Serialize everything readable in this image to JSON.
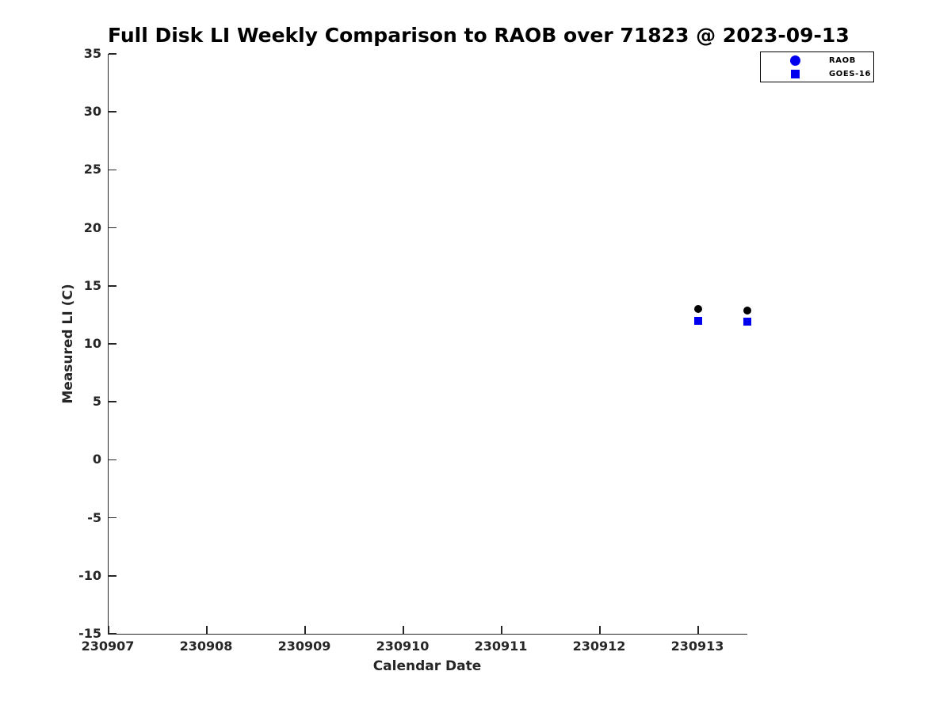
{
  "chart_data": {
    "type": "scatter",
    "title": "Full Disk LI Weekly Comparison to RAOB over 71823 @ 2023-09-13",
    "xlabel": "Calendar Date",
    "ylabel": "Measured LI (C)",
    "xlim": [
      230907,
      230913.5
    ],
    "ylim": [
      -15,
      35
    ],
    "x_ticks": [
      230907,
      230908,
      230909,
      230910,
      230911,
      230912,
      230913
    ],
    "y_ticks": [
      35,
      30,
      25,
      20,
      15,
      10,
      5,
      0,
      -5,
      -10,
      -15
    ],
    "grid": false,
    "legend_position": "top-right",
    "series": [
      {
        "name": "RAOB",
        "marker": "circle",
        "plot_color": "#000000",
        "legend_color": "#0000ee",
        "points": [
          {
            "x": 230913.0,
            "y": 13.0
          },
          {
            "x": 230913.5,
            "y": 12.9
          }
        ]
      },
      {
        "name": "GOES-16",
        "marker": "square",
        "plot_color": "#0000ee",
        "legend_color": "#0000ee",
        "points": [
          {
            "x": 230913.0,
            "y": 12.0
          },
          {
            "x": 230913.5,
            "y": 11.9
          }
        ]
      }
    ]
  }
}
